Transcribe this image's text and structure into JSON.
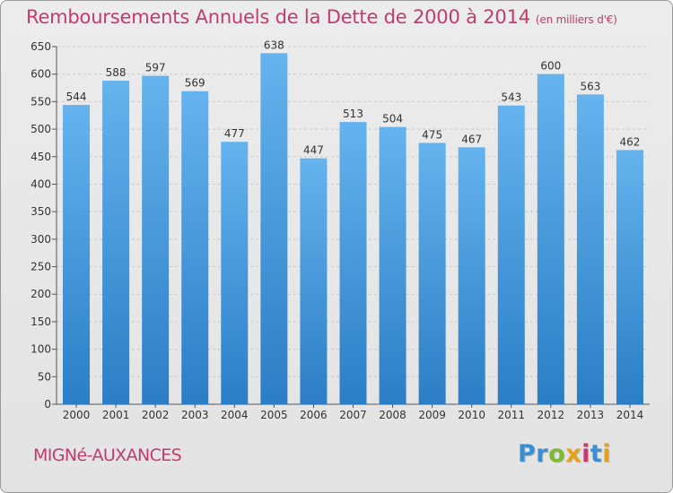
{
  "title": "Remboursements Annuels de la Dette de 2000 à 2014",
  "subtitle": "(en milliers d'€)",
  "town": "MIGNé-AUXANCES",
  "logo": {
    "text": "Proxiti",
    "colors": [
      "#3a8fd0",
      "#3a8fd0",
      "#7dbb2e",
      "#e3a21a",
      "#c43b6d",
      "#3a8fd0",
      "#e3a21a"
    ]
  },
  "colors": {
    "bar_top": "#65b3ee",
    "bar_bottom": "#2b7ec6",
    "title": "#c43b6d"
  },
  "chart_data": {
    "type": "bar",
    "categories": [
      "2000",
      "2001",
      "2002",
      "2003",
      "2004",
      "2005",
      "2006",
      "2007",
      "2008",
      "2009",
      "2010",
      "2011",
      "2012",
      "2013",
      "2014"
    ],
    "values": [
      544,
      588,
      597,
      569,
      477,
      638,
      447,
      513,
      504,
      475,
      467,
      543,
      600,
      563,
      462
    ],
    "ylim": [
      0,
      650
    ],
    "yticks": [
      0,
      50,
      100,
      150,
      200,
      250,
      300,
      350,
      400,
      450,
      500,
      550,
      600,
      650
    ],
    "grid": true
  }
}
